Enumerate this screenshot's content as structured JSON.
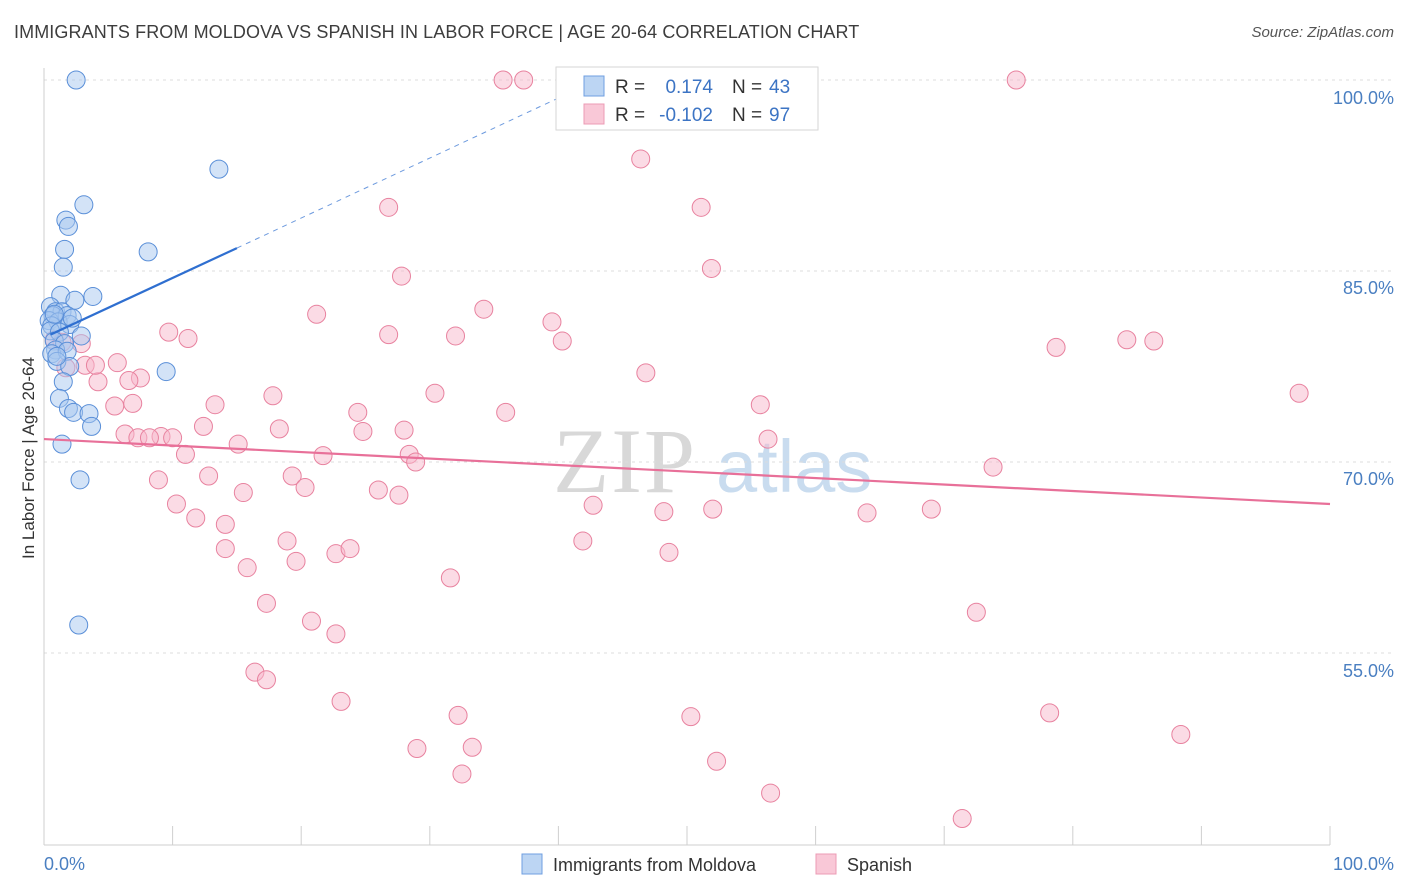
{
  "title": "IMMIGRANTS FROM MOLDOVA VS SPANISH IN LABOR FORCE | AGE 20-64 CORRELATION CHART",
  "source": "Source: ZipAtlas.com",
  "watermark": {
    "zip": "ZIP",
    "atlas": "atlas"
  },
  "colors": {
    "blue_fill": "#a8c8f0",
    "blue_stroke": "#5a8fd8",
    "blue_line": "#2f6fd0",
    "pink_fill": "#f7b8cb",
    "pink_stroke": "#e8829f",
    "pink_line": "#e87099",
    "axis_label": "#4a7fc1",
    "grid": "#dcdcdc"
  },
  "legend": {
    "r_label": "R =",
    "n_label": "N =",
    "blue": {
      "r": "0.174",
      "n": "43"
    },
    "pink": {
      "r": "-0.102",
      "n": "97"
    }
  },
  "chart_data": {
    "type": "scatter",
    "title": "IMMIGRANTS FROM MOLDOVA VS SPANISH IN LABOR FORCE | AGE 20-64 CORRELATION CHART",
    "xlabel": "",
    "ylabel": "In Labor Force | Age 20-64",
    "xlim": [
      0,
      100
    ],
    "ylim": [
      40,
      102
    ],
    "x_tick_labels": [
      "0.0%",
      "100.0%"
    ],
    "y_ticks": [
      55,
      70,
      85,
      100
    ],
    "y_tick_labels": [
      "55.0%",
      "70.0%",
      "85.0%",
      "100.0%"
    ],
    "series": [
      {
        "name": "Immigrants from Moldova",
        "color": "blue",
        "trend": {
          "x0": 0.5,
          "y0": 80.0,
          "x1": 15.0,
          "y1": 86.8,
          "dash_to_x": 43.0,
          "dash_to_y": 100.0
        },
        "points": [
          [
            2.5,
            100.0
          ],
          [
            13.6,
            93.0
          ],
          [
            3.1,
            90.2
          ],
          [
            1.7,
            89.0
          ],
          [
            1.9,
            88.5
          ],
          [
            1.6,
            86.7
          ],
          [
            8.1,
            86.5
          ],
          [
            1.5,
            85.3
          ],
          [
            3.8,
            83.0
          ],
          [
            1.3,
            83.1
          ],
          [
            2.4,
            82.7
          ],
          [
            0.5,
            82.2
          ],
          [
            0.9,
            81.8
          ],
          [
            1.4,
            81.8
          ],
          [
            0.7,
            81.5
          ],
          [
            1.8,
            81.5
          ],
          [
            0.4,
            81.1
          ],
          [
            1.1,
            81.0
          ],
          [
            0.6,
            80.7
          ],
          [
            2.0,
            80.8
          ],
          [
            0.5,
            80.3
          ],
          [
            1.2,
            80.2
          ],
          [
            2.9,
            79.9
          ],
          [
            0.8,
            79.5
          ],
          [
            1.6,
            79.3
          ],
          [
            0.9,
            78.8
          ],
          [
            0.6,
            78.5
          ],
          [
            1.8,
            78.7
          ],
          [
            1.0,
            77.9
          ],
          [
            2.0,
            77.5
          ],
          [
            9.5,
            77.1
          ],
          [
            1.5,
            76.3
          ],
          [
            1.2,
            75.0
          ],
          [
            1.9,
            74.2
          ],
          [
            2.3,
            73.9
          ],
          [
            3.5,
            73.8
          ],
          [
            3.7,
            72.8
          ],
          [
            1.4,
            71.4
          ],
          [
            2.8,
            68.6
          ],
          [
            2.7,
            57.2
          ],
          [
            1.0,
            78.3
          ],
          [
            0.8,
            81.6
          ],
          [
            2.2,
            81.3
          ]
        ]
      },
      {
        "name": "Spanish",
        "color": "pink",
        "trend": {
          "x0": 0.0,
          "y0": 71.8,
          "x1": 100.0,
          "y1": 66.7
        },
        "points": [
          [
            35.7,
            100.0
          ],
          [
            45.1,
            100.0
          ],
          [
            75.6,
            100.0
          ],
          [
            46.4,
            93.8
          ],
          [
            26.8,
            90.0
          ],
          [
            51.1,
            90.0
          ],
          [
            51.9,
            85.2
          ],
          [
            27.8,
            84.6
          ],
          [
            21.2,
            81.6
          ],
          [
            34.2,
            82.0
          ],
          [
            39.5,
            81.0
          ],
          [
            9.7,
            80.2
          ],
          [
            11.2,
            79.7
          ],
          [
            26.8,
            80.0
          ],
          [
            32.0,
            79.9
          ],
          [
            40.3,
            79.5
          ],
          [
            78.7,
            79.0
          ],
          [
            84.2,
            79.6
          ],
          [
            86.3,
            79.5
          ],
          [
            0.8,
            79.6
          ],
          [
            1.4,
            79.4
          ],
          [
            2.9,
            79.3
          ],
          [
            3.2,
            77.6
          ],
          [
            5.7,
            77.8
          ],
          [
            7.5,
            76.6
          ],
          [
            4.2,
            76.3
          ],
          [
            6.6,
            76.4
          ],
          [
            46.8,
            77.0
          ],
          [
            17.8,
            75.2
          ],
          [
            30.4,
            75.4
          ],
          [
            97.6,
            75.4
          ],
          [
            5.5,
            74.4
          ],
          [
            6.9,
            74.6
          ],
          [
            13.3,
            74.5
          ],
          [
            35.9,
            73.9
          ],
          [
            55.7,
            74.5
          ],
          [
            24.4,
            73.9
          ],
          [
            12.4,
            72.8
          ],
          [
            18.3,
            72.6
          ],
          [
            24.8,
            72.4
          ],
          [
            28.0,
            72.5
          ],
          [
            9.1,
            72.0
          ],
          [
            10.0,
            71.9
          ],
          [
            6.3,
            72.2
          ],
          [
            7.3,
            71.9
          ],
          [
            56.3,
            71.8
          ],
          [
            15.1,
            71.4
          ],
          [
            11.0,
            70.6
          ],
          [
            21.7,
            70.5
          ],
          [
            28.4,
            70.6
          ],
          [
            28.9,
            70.0
          ],
          [
            73.8,
            69.6
          ],
          [
            8.9,
            68.6
          ],
          [
            12.8,
            68.9
          ],
          [
            19.3,
            68.9
          ],
          [
            20.3,
            68.0
          ],
          [
            15.5,
            67.6
          ],
          [
            26.0,
            67.8
          ],
          [
            27.6,
            67.4
          ],
          [
            10.3,
            66.7
          ],
          [
            42.7,
            66.6
          ],
          [
            48.2,
            66.1
          ],
          [
            52.0,
            66.3
          ],
          [
            64.0,
            66.0
          ],
          [
            69.0,
            66.3
          ],
          [
            11.8,
            65.6
          ],
          [
            14.1,
            65.1
          ],
          [
            18.9,
            63.8
          ],
          [
            22.7,
            62.8
          ],
          [
            23.8,
            63.2
          ],
          [
            41.9,
            63.8
          ],
          [
            14.1,
            63.2
          ],
          [
            48.6,
            62.9
          ],
          [
            19.6,
            62.2
          ],
          [
            15.8,
            61.7
          ],
          [
            31.6,
            60.9
          ],
          [
            17.3,
            58.9
          ],
          [
            72.5,
            58.2
          ],
          [
            20.8,
            57.5
          ],
          [
            22.7,
            56.5
          ],
          [
            16.4,
            53.5
          ],
          [
            17.3,
            52.9
          ],
          [
            23.1,
            51.2
          ],
          [
            32.2,
            50.1
          ],
          [
            50.3,
            50.0
          ],
          [
            78.2,
            50.3
          ],
          [
            88.4,
            48.6
          ],
          [
            29.0,
            47.5
          ],
          [
            33.3,
            47.6
          ],
          [
            52.3,
            46.5
          ],
          [
            32.5,
            45.5
          ],
          [
            56.5,
            44.0
          ],
          [
            71.4,
            42.0
          ],
          [
            37.3,
            100.0
          ],
          [
            4.0,
            77.6
          ],
          [
            1.7,
            77.4
          ],
          [
            8.2,
            71.9
          ]
        ]
      }
    ]
  },
  "bottom_legend": [
    "Immigrants from Moldova",
    "Spanish"
  ]
}
